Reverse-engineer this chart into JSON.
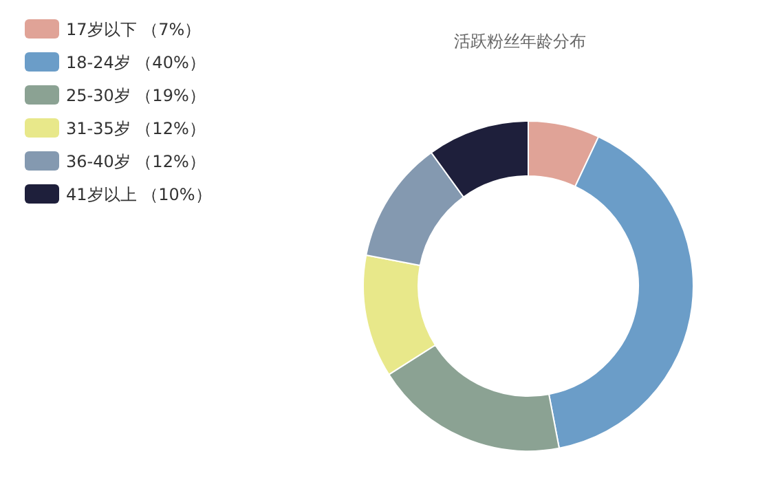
{
  "chart_data": {
    "type": "donut",
    "title": "活跃粉丝年龄分布",
    "categories": [
      "17岁以下 （7%）",
      "18-24岁 （40%）",
      "25-30岁 （19%）",
      "31-35岁 （12%）",
      "36-40岁 （12%）",
      "41岁以上 （10%）"
    ],
    "values": [
      7,
      40,
      19,
      12,
      12,
      10
    ],
    "colors": [
      "#e0a397",
      "#6b9dc8",
      "#8ba293",
      "#e8e88a",
      "#8499b0",
      "#1e1f3b"
    ],
    "legend": "top left"
  }
}
